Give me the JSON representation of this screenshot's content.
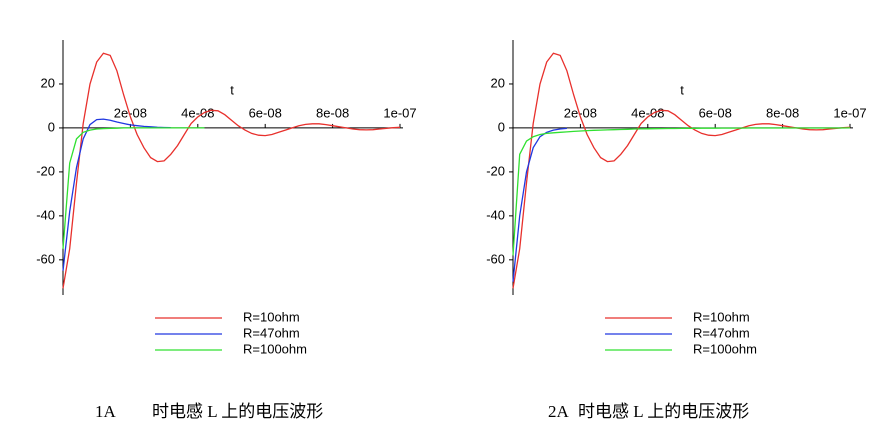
{
  "chart_data": [
    {
      "type": "line",
      "x_label": "t",
      "caption_label": "1A",
      "caption": "时电感 L 上的电压波形",
      "x": [
        0,
        2e-09,
        4e-09,
        6e-09,
        8e-09,
        1e-08,
        1.2e-08,
        1.4e-08,
        1.6e-08,
        1.8e-08,
        2e-08,
        2.2e-08,
        2.4e-08,
        2.6e-08,
        2.8e-08,
        3e-08,
        3.2e-08,
        3.4e-08,
        3.6e-08,
        3.8e-08,
        4e-08,
        4.2e-08,
        4.4e-08,
        4.6e-08,
        4.8e-08,
        5e-08,
        5.2e-08,
        5.4e-08,
        5.6e-08,
        5.8e-08,
        6e-08,
        6.2e-08,
        6.4e-08,
        6.6e-08,
        6.8e-08,
        7e-08,
        7.2e-08,
        7.4e-08,
        7.6e-08,
        7.8e-08,
        8e-08,
        8.2e-08,
        8.4e-08,
        8.6e-08,
        8.8e-08,
        9e-08,
        9.2e-08,
        9.4e-08,
        9.6e-08,
        9.8e-08,
        1e-07
      ],
      "series": [
        {
          "name": "R=10ohm",
          "color": "#e8302c",
          "values": [
            -73,
            -55,
            -25,
            2,
            20,
            30,
            34,
            33,
            26,
            15,
            5,
            -3,
            -9,
            -13.5,
            -15.3,
            -15,
            -12,
            -8,
            -3,
            2,
            5,
            7,
            8,
            7.8,
            6,
            3.5,
            1,
            -1,
            -2.5,
            -3.3,
            -3.5,
            -3,
            -2,
            -1,
            0,
            1,
            1.6,
            1.9,
            1.9,
            1.5,
            1,
            0.5,
            0,
            -0.5,
            -0.8,
            -0.9,
            -0.8,
            -0.5,
            -0.2,
            0.1,
            0.3
          ]
        },
        {
          "name": "R=47ohm",
          "color": "#2038e0",
          "values": [
            -65,
            -38,
            -18,
            -5,
            1.5,
            3.8,
            4,
            3.5,
            2.7,
            2,
            1.4,
            1,
            0.7,
            0.5,
            0.3,
            0.2,
            0.1,
            null,
            null,
            null,
            null,
            null,
            null,
            null,
            null,
            null,
            null,
            null,
            null,
            null,
            null,
            null,
            null,
            null,
            null,
            null,
            null,
            null,
            null,
            null,
            null,
            null,
            null,
            null,
            null,
            null,
            null,
            null,
            null,
            null,
            null
          ]
        },
        {
          "name": "R=100ohm",
          "color": "#30e030",
          "values": [
            -55,
            -16,
            -5,
            -2,
            -1,
            -0.5,
            -0.3,
            -0.2,
            -0.1,
            0,
            0,
            0,
            0,
            0,
            0,
            0,
            0,
            0,
            0,
            0,
            0,
            0,
            null,
            null,
            null,
            null,
            null,
            null,
            null,
            null,
            null,
            null,
            null,
            null,
            null,
            null,
            null,
            null,
            null,
            null,
            null,
            null,
            null,
            null,
            null,
            null,
            null,
            null,
            null,
            null,
            null
          ]
        }
      ],
      "xlim": [
        0,
        1e-07
      ],
      "ylim": [
        -76,
        40
      ],
      "xticks": [
        {
          "value": 2e-08,
          "label": "2e-08"
        },
        {
          "value": 4e-08,
          "label": "4e-08"
        },
        {
          "value": 6e-08,
          "label": "6e-08"
        },
        {
          "value": 8e-08,
          "label": "8e-08"
        },
        {
          "value": 1e-07,
          "label": "1e-07"
        }
      ],
      "yticks": [
        -60,
        -40,
        -20,
        0,
        20
      ]
    },
    {
      "type": "line",
      "x_label": "t",
      "caption_label": "2A",
      "caption": "时电感 L 上的电压波形",
      "x": [
        0,
        2e-09,
        4e-09,
        6e-09,
        8e-09,
        1e-08,
        1.2e-08,
        1.4e-08,
        1.6e-08,
        1.8e-08,
        2e-08,
        2.2e-08,
        2.4e-08,
        2.6e-08,
        2.8e-08,
        3e-08,
        3.2e-08,
        3.4e-08,
        3.6e-08,
        3.8e-08,
        4e-08,
        4.2e-08,
        4.4e-08,
        4.6e-08,
        4.8e-08,
        5e-08,
        5.2e-08,
        5.4e-08,
        5.6e-08,
        5.8e-08,
        6e-08,
        6.2e-08,
        6.4e-08,
        6.6e-08,
        6.8e-08,
        7e-08,
        7.2e-08,
        7.4e-08,
        7.6e-08,
        7.8e-08,
        8e-08,
        8.2e-08,
        8.4e-08,
        8.6e-08,
        8.8e-08,
        9e-08,
        9.2e-08,
        9.4e-08,
        9.6e-08,
        9.8e-08,
        1e-07
      ],
      "series": [
        {
          "name": "R=10ohm",
          "color": "#e8302c",
          "values": [
            -73,
            -55,
            -25,
            2,
            20,
            30,
            34,
            33,
            26,
            15,
            5,
            -3,
            -9,
            -13.5,
            -15.3,
            -15,
            -12,
            -8,
            -3,
            2,
            5,
            7,
            8,
            7.8,
            6,
            3.5,
            1,
            -1,
            -2.5,
            -3.3,
            -3.5,
            -3,
            -2,
            -1,
            0,
            1,
            1.6,
            1.9,
            1.9,
            1.5,
            1,
            0.5,
            0,
            -0.5,
            -0.8,
            -0.9,
            -0.8,
            -0.5,
            -0.2,
            0.1,
            0.3
          ]
        },
        {
          "name": "R=47ohm",
          "color": "#2038e0",
          "values": [
            -70,
            -40,
            -20,
            -9,
            -4,
            -2,
            -1,
            -0.5,
            -0.2,
            null,
            null,
            null,
            null,
            null,
            null,
            null,
            null,
            null,
            null,
            null,
            null,
            null,
            null,
            null,
            null,
            null,
            null,
            null,
            null,
            null,
            null,
            null,
            null,
            null,
            null,
            null,
            null,
            null,
            null,
            null,
            null,
            null,
            null,
            null,
            null,
            null,
            null,
            null,
            null,
            null,
            null
          ]
        },
        {
          "name": "R=100ohm",
          "color": "#30e030",
          "values": [
            -58,
            -12,
            -6,
            -4,
            -3,
            -2.5,
            -2.2,
            -2,
            -1.8,
            -1.6,
            -1.4,
            -1.2,
            -1.1,
            -1,
            -0.9,
            -0.8,
            -0.7,
            -0.6,
            -0.5,
            -0.45,
            -0.4,
            -0.35,
            -0.3,
            -0.27,
            -0.24,
            -0.21,
            -0.18,
            -0.16,
            -0.14,
            -0.12,
            -0.1,
            -0.09,
            -0.08,
            -0.07,
            -0.06,
            -0.05,
            -0.05,
            -0.04,
            -0.04,
            -0.03,
            -0.03,
            -0.03,
            -0.02,
            -0.02,
            -0.02,
            -0.02,
            -0.01,
            -0.01,
            -0.01,
            -0.01,
            0
          ]
        }
      ],
      "xlim": [
        0,
        1e-07
      ],
      "ylim": [
        -76,
        40
      ],
      "xticks": [
        {
          "value": 2e-08,
          "label": "2e-08"
        },
        {
          "value": 4e-08,
          "label": "4e-08"
        },
        {
          "value": 6e-08,
          "label": "6e-08"
        },
        {
          "value": 8e-08,
          "label": "8e-08"
        },
        {
          "value": 1e-07,
          "label": "1e-07"
        }
      ],
      "yticks": [
        -60,
        -40,
        -20,
        0,
        20
      ]
    }
  ]
}
